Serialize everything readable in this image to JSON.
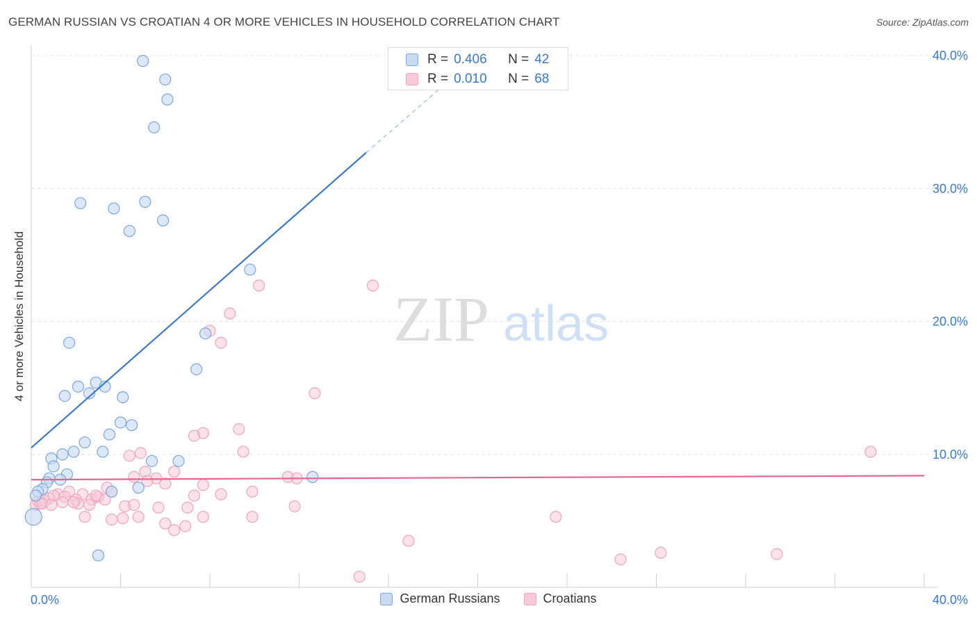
{
  "title": "GERMAN RUSSIAN VS CROATIAN 4 OR MORE VEHICLES IN HOUSEHOLD CORRELATION CHART",
  "source": "Source: ZipAtlas.com",
  "watermark": {
    "zip": "ZIP",
    "atlas": "atlas"
  },
  "colors": {
    "blue": "#3a78c9",
    "blue_fill": "#c9dbf3",
    "pink": "#e8648f",
    "pink_fill": "#f8c9d8",
    "grid": "#e4e4e4"
  },
  "legend_box": {
    "series1": {
      "r_label": "R =",
      "r_value": "0.406",
      "n_label": "N =",
      "n_value": "42"
    },
    "series2": {
      "r_label": "R =",
      "r_value": "0.010",
      "n_label": "N =",
      "n_value": "68"
    }
  },
  "chart_data": {
    "type": "scatter",
    "title": "GERMAN RUSSIAN VS CROATIAN 4 OR MORE VEHICLES IN HOUSEHOLD CORRELATION CHART",
    "xlabel": "",
    "ylabel": "4 or more Vehicles in Household",
    "xlim": [
      0,
      40
    ],
    "ylim": [
      0,
      40
    ],
    "x_tick_labels": [
      "0.0%",
      "40.0%"
    ],
    "y_tick_labels": [
      "10.0%",
      "20.0%",
      "30.0%",
      "40.0%"
    ],
    "y_ticks": [
      10,
      20,
      30,
      40
    ],
    "grid": true,
    "legend_position": "top-center",
    "series": [
      {
        "name": "German Russians",
        "color": "#3a78c9",
        "trend": {
          "x": [
            0,
            15
          ],
          "y": [
            10.5,
            32.7
          ],
          "dashed_to": [
            18.5,
            37.8
          ]
        },
        "points": [
          [
            5.0,
            39.6
          ],
          [
            6.0,
            38.2
          ],
          [
            6.1,
            36.7
          ],
          [
            5.5,
            34.6
          ],
          [
            2.2,
            28.9
          ],
          [
            3.7,
            28.5
          ],
          [
            5.1,
            29.0
          ],
          [
            5.9,
            27.6
          ],
          [
            4.4,
            26.8
          ],
          [
            9.8,
            23.9
          ],
          [
            7.8,
            19.1
          ],
          [
            1.7,
            18.4
          ],
          [
            7.4,
            16.4
          ],
          [
            2.9,
            15.4
          ],
          [
            2.1,
            15.1
          ],
          [
            3.3,
            15.1
          ],
          [
            2.6,
            14.6
          ],
          [
            1.5,
            14.4
          ],
          [
            4.1,
            14.3
          ],
          [
            4.0,
            12.4
          ],
          [
            4.5,
            12.2
          ],
          [
            3.5,
            11.5
          ],
          [
            2.4,
            10.9
          ],
          [
            1.9,
            10.2
          ],
          [
            3.2,
            10.2
          ],
          [
            1.4,
            10.0
          ],
          [
            0.9,
            9.7
          ],
          [
            5.4,
            9.5
          ],
          [
            6.6,
            9.5
          ],
          [
            1.0,
            9.1
          ],
          [
            1.6,
            8.5
          ],
          [
            12.6,
            8.3
          ],
          [
            0.8,
            8.2
          ],
          [
            1.3,
            8.1
          ],
          [
            0.7,
            7.9
          ],
          [
            0.5,
            7.4
          ],
          [
            0.3,
            7.2
          ],
          [
            3.6,
            7.2
          ],
          [
            4.8,
            7.5
          ],
          [
            0.2,
            6.9
          ],
          [
            0.1,
            5.3
          ],
          [
            3.0,
            2.4
          ]
        ]
      },
      {
        "name": "Croatians",
        "color": "#e8648f",
        "trend": {
          "x": [
            0,
            40
          ],
          "y": [
            8.1,
            8.4
          ]
        },
        "points": [
          [
            15.3,
            22.7
          ],
          [
            10.2,
            22.7
          ],
          [
            8.9,
            20.6
          ],
          [
            8.0,
            19.3
          ],
          [
            8.5,
            18.4
          ],
          [
            12.7,
            14.6
          ],
          [
            9.3,
            11.9
          ],
          [
            7.7,
            11.6
          ],
          [
            7.3,
            11.4
          ],
          [
            37.6,
            10.2
          ],
          [
            9.5,
            10.2
          ],
          [
            4.9,
            10.1
          ],
          [
            4.4,
            9.9
          ],
          [
            6.4,
            8.7
          ],
          [
            5.1,
            8.7
          ],
          [
            11.5,
            8.3
          ],
          [
            11.9,
            8.2
          ],
          [
            4.6,
            8.3
          ],
          [
            5.6,
            8.2
          ],
          [
            5.2,
            8.0
          ],
          [
            6.0,
            7.8
          ],
          [
            7.7,
            7.7
          ],
          [
            3.4,
            7.5
          ],
          [
            9.9,
            7.2
          ],
          [
            3.6,
            7.2
          ],
          [
            1.7,
            7.2
          ],
          [
            2.3,
            7.0
          ],
          [
            1.2,
            7.0
          ],
          [
            7.3,
            6.9
          ],
          [
            8.5,
            7.0
          ],
          [
            1.5,
            6.8
          ],
          [
            0.8,
            6.7
          ],
          [
            2.7,
            6.6
          ],
          [
            2.0,
            6.6
          ],
          [
            3.0,
            6.8
          ],
          [
            0.3,
            6.5
          ],
          [
            0.6,
            6.5
          ],
          [
            1.4,
            6.4
          ],
          [
            2.1,
            6.3
          ],
          [
            1.9,
            6.4
          ],
          [
            2.6,
            6.2
          ],
          [
            0.2,
            6.2
          ],
          [
            0.4,
            6.3
          ],
          [
            4.2,
            6.1
          ],
          [
            4.6,
            6.2
          ],
          [
            5.7,
            6.0
          ],
          [
            7.0,
            6.0
          ],
          [
            11.8,
            6.1
          ],
          [
            2.4,
            5.3
          ],
          [
            3.6,
            5.1
          ],
          [
            4.1,
            5.2
          ],
          [
            4.8,
            5.3
          ],
          [
            7.7,
            5.3
          ],
          [
            9.9,
            5.3
          ],
          [
            6.0,
            4.8
          ],
          [
            6.9,
            4.6
          ],
          [
            6.4,
            4.3
          ],
          [
            23.5,
            5.3
          ],
          [
            16.9,
            3.5
          ],
          [
            26.4,
            2.1
          ],
          [
            28.2,
            2.6
          ],
          [
            33.4,
            2.5
          ],
          [
            14.7,
            0.8
          ],
          [
            0.5,
            6.3
          ],
          [
            1.0,
            6.9
          ],
          [
            3.3,
            6.6
          ],
          [
            2.9,
            6.9
          ],
          [
            0.9,
            6.2
          ]
        ]
      }
    ]
  }
}
